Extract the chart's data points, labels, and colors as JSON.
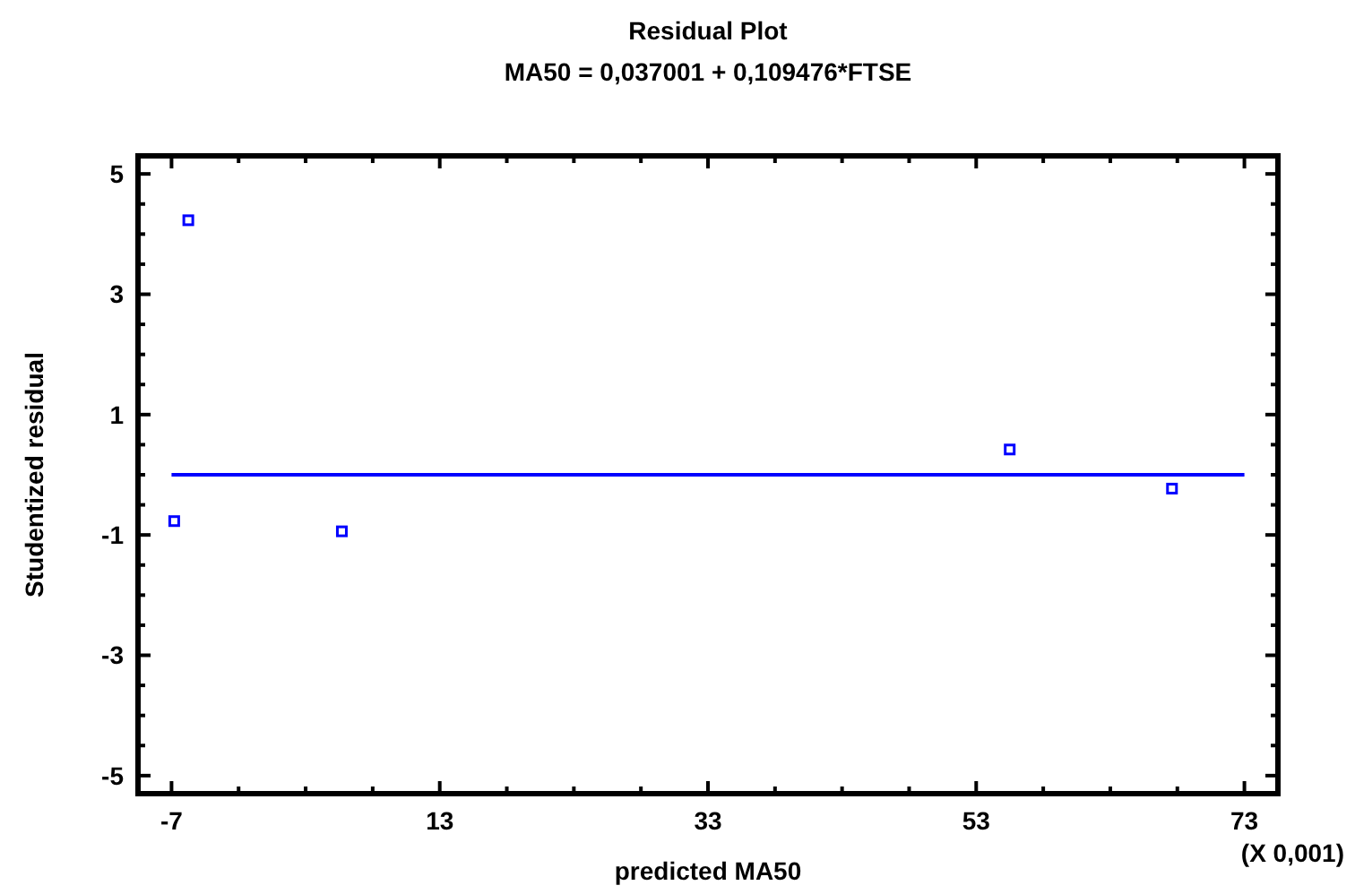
{
  "chart_data": {
    "type": "scatter",
    "title": "Residual Plot",
    "subtitle": "MA50 = 0,037001 + 0,109476*FTSE",
    "xlabel": "predicted MA50",
    "ylabel": "Studentized residual",
    "annotations": [
      "(X 0,001)"
    ],
    "xlim": [
      -9.5,
      75.5
    ],
    "ylim": [
      -5.3,
      5.3
    ],
    "xticks": [
      -7,
      {
        "value": -2,
        "label": null
      },
      {
        "value": 3,
        "label": null
      },
      {
        "value": 8,
        "label": null
      },
      13,
      {
        "value": 18,
        "label": null
      },
      {
        "value": 23,
        "label": null
      },
      {
        "value": 28,
        "label": null
      },
      33,
      {
        "value": 38,
        "label": null
      },
      {
        "value": 43,
        "label": null
      },
      {
        "value": 48,
        "label": null
      },
      53,
      {
        "value": 58,
        "label": null
      },
      {
        "value": 63,
        "label": null
      },
      {
        "value": 68,
        "label": null
      },
      73
    ],
    "yticks": [
      -5,
      {
        "value": -4.5,
        "label": null
      },
      {
        "value": -4,
        "label": null
      },
      {
        "value": -3.5,
        "label": null
      },
      -3,
      {
        "value": -2.5,
        "label": null
      },
      {
        "value": -2,
        "label": null
      },
      {
        "value": -1.5,
        "label": null
      },
      -1,
      {
        "value": -0.5,
        "label": null
      },
      {
        "value": 0,
        "label": null
      },
      {
        "value": 0.5,
        "label": null
      },
      1,
      {
        "value": 1.5,
        "label": null
      },
      {
        "value": 2,
        "label": null
      },
      {
        "value": 2.5,
        "label": null
      },
      3,
      {
        "value": 3.5,
        "label": null
      },
      {
        "value": 4,
        "label": null
      },
      {
        "value": 4.5,
        "label": null
      },
      5
    ],
    "grid": false,
    "series": [
      {
        "marker": "square",
        "color": "#0000ff",
        "x": [
          -5.75,
          -6.8,
          5.7,
          55.5,
          67.6
        ],
        "values": [
          4.23,
          -0.77,
          -0.94,
          0.42,
          -0.23
        ]
      },
      {
        "type": "line",
        "marker": "none",
        "color": "#0000ff",
        "x": [
          -7,
          73
        ],
        "values": [
          0,
          0
        ]
      }
    ]
  }
}
